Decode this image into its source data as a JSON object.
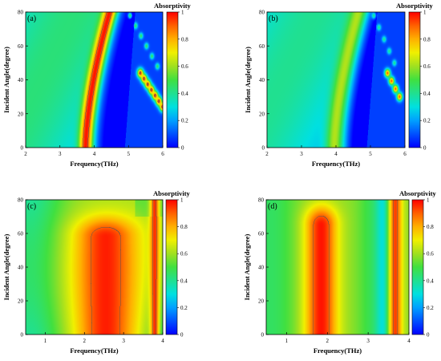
{
  "colorbar_stops": [
    "#0000ff",
    "#0050ff",
    "#00a0ff",
    "#00e0e0",
    "#20e090",
    "#40e040",
    "#a0e020",
    "#f0f000",
    "#ffb000",
    "#ff6000",
    "#ff0000"
  ],
  "contour_color": "#555555",
  "chart_data": [
    {
      "type": "heatmap",
      "panel_label": "(a)",
      "xlabel": "Frequency(THz)",
      "ylabel": "Incident Angle(degree)",
      "colorbar_title": "Absorptivity",
      "colorbar_ticks": [
        "0",
        "0.2",
        "0.4",
        "0.6",
        "0.8",
        "1"
      ],
      "colorbar_range": [
        0,
        1
      ],
      "xlim": [
        2,
        6
      ],
      "ylim": [
        0,
        80
      ],
      "xticks": [
        "2",
        "3",
        "4",
        "5",
        "6"
      ],
      "yticks": [
        "0",
        "20",
        "40",
        "60",
        "80"
      ],
      "contour_level": 0.9,
      "features": [
        {
          "kind": "band",
          "peak": 0.98,
          "x_at_0": 3.75,
          "x_at_max_angle": 4.45,
          "curve_power": 1.6,
          "width": 0.2,
          "ymax": 82
        },
        {
          "kind": "spots",
          "peak": 0.95,
          "from": [
            5.35,
            44
          ],
          "to": [
            6.0,
            24
          ],
          "count": 7,
          "radius": 0.09
        },
        {
          "kind": "spots",
          "peak": 0.45,
          "from": [
            5.05,
            78
          ],
          "to": [
            5.85,
            48
          ],
          "count": 6,
          "radius": 0.06
        }
      ]
    },
    {
      "type": "heatmap",
      "panel_label": "(b)",
      "xlabel": "Frequency(THz)",
      "ylabel": "Incident Angle(degree)",
      "colorbar_title": "Absorptivity",
      "colorbar_ticks": [
        "0",
        "0.2",
        "0.4",
        "0.6",
        "0.8",
        "1"
      ],
      "colorbar_range": [
        0,
        1
      ],
      "xlim": [
        2,
        6
      ],
      "ylim": [
        0,
        80
      ],
      "xticks": [
        "2",
        "3",
        "4",
        "5",
        "6"
      ],
      "yticks": [
        "0",
        "20",
        "40",
        "60",
        "80"
      ],
      "contour_level": null,
      "features": [
        {
          "kind": "band",
          "peak": 0.62,
          "x_at_0": 3.95,
          "x_at_max_angle": 4.65,
          "curve_power": 1.6,
          "width": 0.25,
          "ymax": 82
        },
        {
          "kind": "spots",
          "peak": 0.9,
          "from": [
            5.5,
            44
          ],
          "to": [
            5.85,
            30
          ],
          "count": 4,
          "radius": 0.08
        },
        {
          "kind": "spots",
          "peak": 0.4,
          "from": [
            5.1,
            78
          ],
          "to": [
            5.7,
            50
          ],
          "count": 5,
          "radius": 0.06
        }
      ]
    },
    {
      "type": "heatmap",
      "panel_label": "(c)",
      "xlabel": "Frequency(THz)",
      "ylabel": "Incident Angle(degree)",
      "colorbar_title": "Absorptivity",
      "colorbar_ticks": [
        "0",
        "0.2",
        "0.4",
        "0.6",
        "0.8",
        "1"
      ],
      "colorbar_range": [
        0,
        1
      ],
      "xlim": [
        0.5,
        4
      ],
      "ylim": [
        0,
        80
      ],
      "xticks": [
        "1",
        "2",
        "3",
        "4"
      ],
      "yticks": [
        "0",
        "20",
        "40",
        "60",
        "80"
      ],
      "contour_level": 0.9,
      "features": [
        {
          "kind": "blob",
          "peak": 0.97,
          "cx": 2.55,
          "wx": 0.75,
          "ytop": 58,
          "wy": 20
        },
        {
          "kind": "blob",
          "peak": 0.95,
          "cx": 3.8,
          "wx": 0.12,
          "ytop": 82,
          "wy": 5
        }
      ]
    },
    {
      "type": "heatmap",
      "panel_label": "(d)",
      "xlabel": "Frequency(THz)",
      "ylabel": "Incident Angle(degree)",
      "colorbar_title": "Absorptivity",
      "colorbar_ticks": [
        "0",
        "0.2",
        "0.4",
        "0.6",
        "0.8",
        "1"
      ],
      "colorbar_range": [
        0,
        1
      ],
      "xlim": [
        0.5,
        4
      ],
      "ylim": [
        0,
        80
      ],
      "xticks": [
        "1",
        "2",
        "3",
        "4"
      ],
      "yticks": [
        "0",
        "20",
        "40",
        "60",
        "80"
      ],
      "contour_level": 0.9,
      "features": [
        {
          "kind": "blob",
          "peak": 0.98,
          "cx": 1.85,
          "wx": 0.4,
          "ytop": 65,
          "wy": 20
        },
        {
          "kind": "blob",
          "peak": 0.98,
          "cx": 3.65,
          "wx": 0.18,
          "ytop": 90,
          "wy": 26
        },
        {
          "kind": "valley",
          "depth": 0.25,
          "cx": 3.4,
          "wx": 0.2
        }
      ]
    }
  ]
}
